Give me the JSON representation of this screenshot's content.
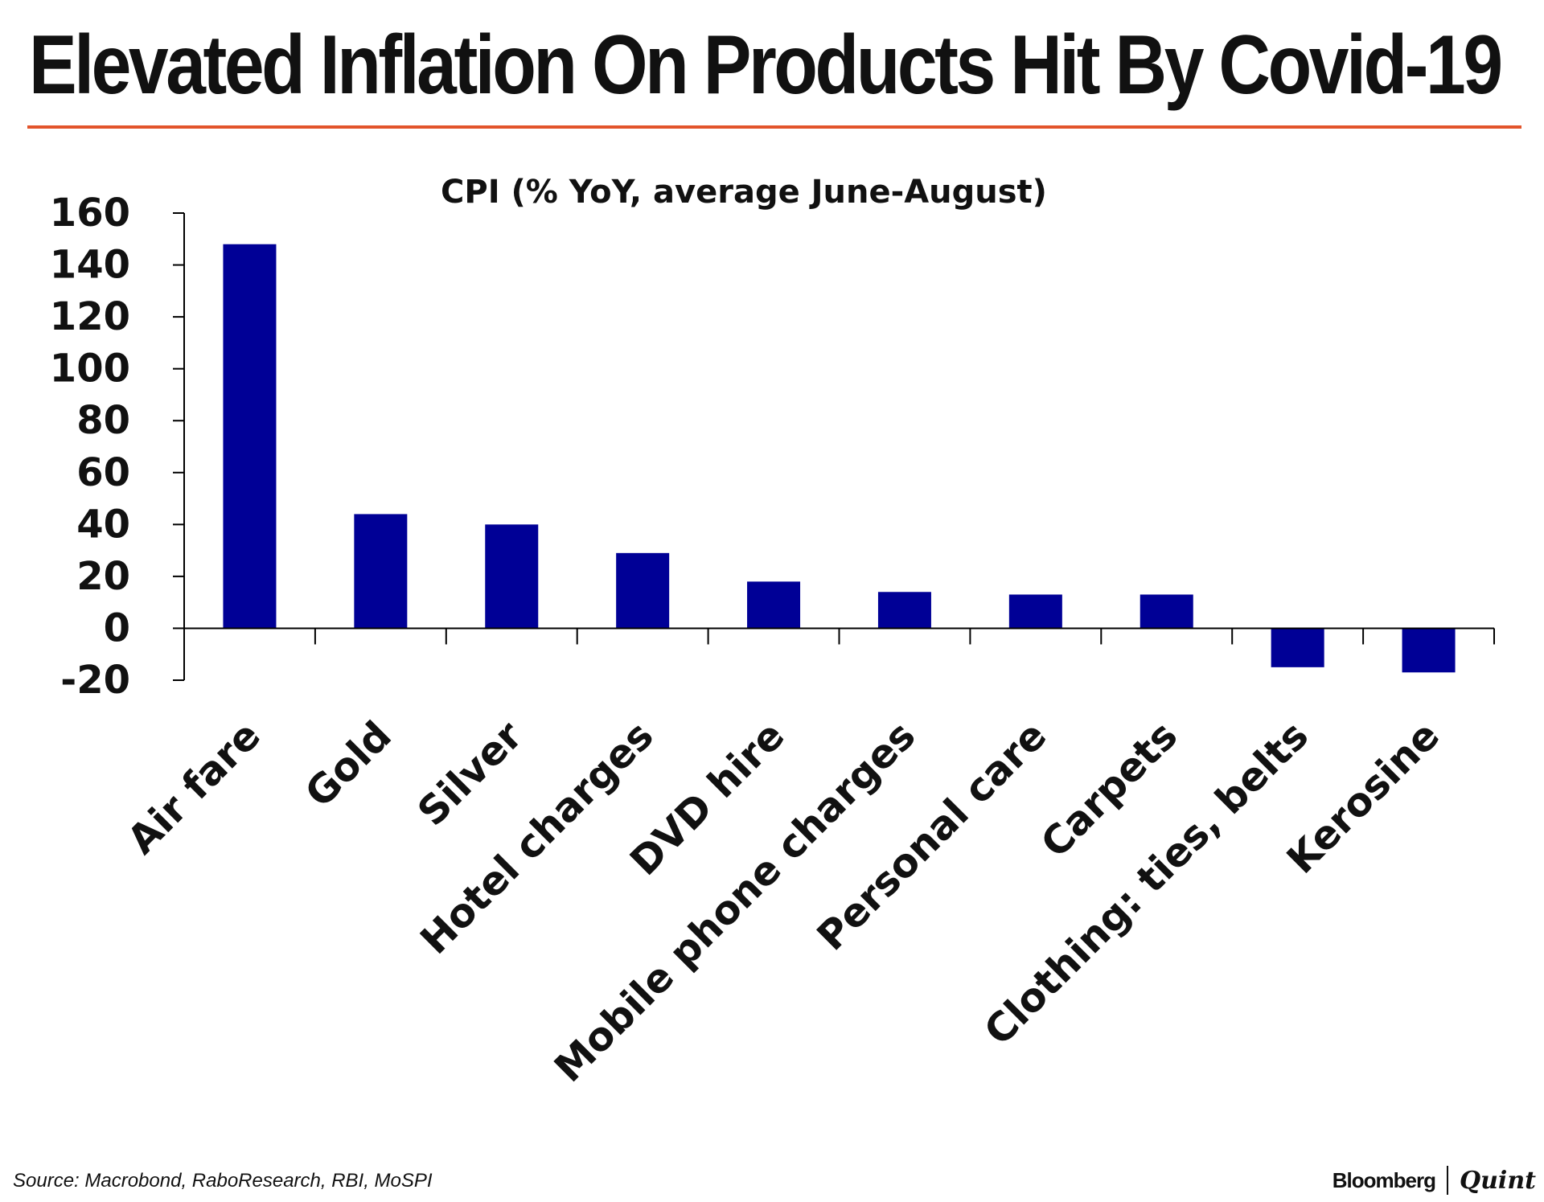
{
  "headline": "Elevated Inflation On Products Hit By Covid-19",
  "colors": {
    "rule": "#e2542b",
    "bar": "#000096",
    "axis": "#000000",
    "text": "#111111"
  },
  "chart_data": {
    "type": "bar",
    "title": "CPI (% YoY, average June-August)",
    "xlabel": "",
    "ylabel": "",
    "categories": [
      "Air fare",
      "Gold",
      "Silver",
      "Hotel charges",
      "DVD hire",
      "Mobile phone charges",
      "Personal care",
      "Carpets",
      "Clothing: ties, belts",
      "Kerosine"
    ],
    "values": [
      148,
      44,
      40,
      29,
      18,
      14,
      13,
      13,
      -15,
      -17
    ],
    "ylim": [
      -20,
      160
    ],
    "yticks": [
      160,
      140,
      120,
      100,
      80,
      60,
      40,
      20,
      0,
      -20
    ],
    "ytick_labels": [
      "160",
      "140",
      "120",
      "100",
      "80",
      "60",
      "40",
      "20",
      "0",
      "-20"
    ],
    "grid": false,
    "legend": "none"
  },
  "footer": {
    "source": "Source: Macrobond, RaboResearch, RBI, MoSPI",
    "brand_left": "Bloomberg",
    "brand_right": "Quint"
  }
}
